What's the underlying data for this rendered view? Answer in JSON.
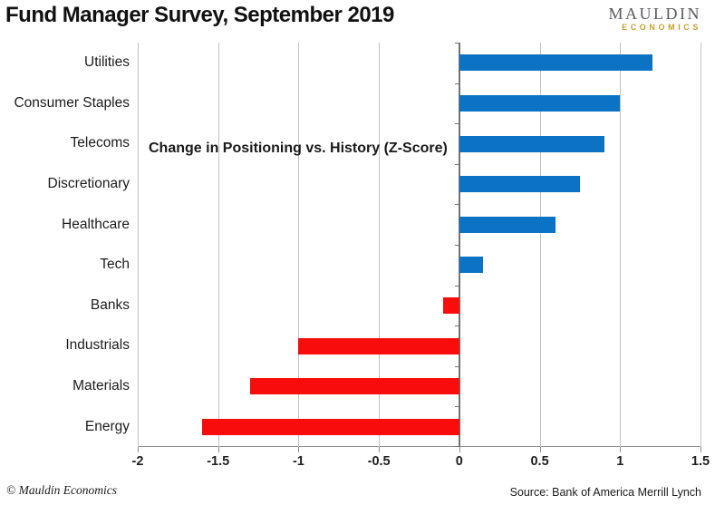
{
  "title": "Fund Manager Survey, September 2019",
  "logo": {
    "line1": "MAULDIN",
    "line2": "ECONOMICS"
  },
  "annotation": "Change in Positioning vs. History (Z-Score)",
  "footer": {
    "copyright": "© Mauldin Economics",
    "source": "Source: Bank of America Merrill Lynch"
  },
  "colors": {
    "positive_bar": "#0b72c4",
    "negative_bar": "#f80c0c",
    "gridline": "#c2c2c2",
    "zero_axis": "#737373",
    "bottom_axis": "#8f8f8f",
    "logo_gray": "#5a5b5e",
    "logo_gold": "#c5a12f",
    "text": "#1c1c1c"
  },
  "chart_data": {
    "type": "bar",
    "orientation": "horizontal",
    "title": "Change in Positioning vs. History (Z-Score)",
    "categories": [
      "Utilities",
      "Consumer Staples",
      "Telecoms",
      "Discretionary",
      "Healthcare",
      "Tech",
      "Banks",
      "Industrials",
      "Materials",
      "Energy"
    ],
    "values": [
      1.2,
      1.0,
      0.9,
      0.75,
      0.6,
      0.15,
      -0.1,
      -1.0,
      -1.3,
      -1.6
    ],
    "xlabel": "",
    "ylabel": "",
    "xlim": [
      -2,
      1.5
    ],
    "xticks": [
      -2,
      -1.5,
      -1,
      -0.5,
      0,
      0.5,
      1,
      1.5
    ],
    "xtick_labels": [
      "-2",
      "-1.5",
      "-1",
      "-0.5",
      "0",
      "0.5",
      "1",
      "1.5"
    ],
    "grid": true,
    "legend": false,
    "positive_color": "#0b72c4",
    "negative_color": "#f80c0c"
  }
}
